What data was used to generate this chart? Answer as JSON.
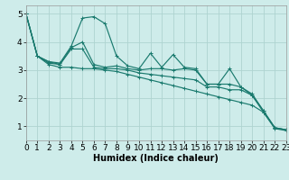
{
  "bg_color": "#ceecea",
  "grid_color": "#aed4d0",
  "line_color": "#1a7a6e",
  "xlabel": "Humidex (Indice chaleur)",
  "xlabel_fontsize": 7,
  "tick_fontsize": 6.5,
  "xlim": [
    0,
    23
  ],
  "ylim": [
    0.5,
    5.3
  ],
  "yticks": [
    1,
    2,
    3,
    4,
    5
  ],
  "xticks": [
    0,
    1,
    2,
    3,
    4,
    5,
    6,
    7,
    8,
    9,
    10,
    11,
    12,
    13,
    14,
    15,
    16,
    17,
    18,
    19,
    20,
    21,
    22,
    23
  ],
  "lines": [
    [
      5.0,
      3.5,
      3.3,
      3.25,
      3.85,
      4.85,
      4.9,
      4.65,
      3.5,
      3.15,
      3.05,
      3.6,
      3.1,
      3.55,
      3.1,
      3.05,
      2.5,
      2.5,
      3.05,
      2.4,
      2.15,
      1.55,
      0.95,
      0.88
    ],
    [
      5.0,
      3.5,
      3.3,
      3.2,
      3.8,
      4.0,
      3.2,
      3.1,
      3.15,
      3.05,
      3.0,
      3.05,
      3.05,
      3.0,
      3.05,
      3.0,
      2.5,
      2.5,
      2.5,
      2.4,
      2.1,
      1.55,
      0.95,
      0.88
    ],
    [
      5.0,
      3.5,
      3.25,
      3.2,
      3.75,
      3.75,
      3.1,
      3.05,
      3.05,
      3.0,
      2.9,
      2.85,
      2.8,
      2.75,
      2.7,
      2.65,
      2.4,
      2.4,
      2.3,
      2.3,
      2.1,
      1.5,
      0.95,
      0.87
    ],
    [
      5.0,
      3.5,
      3.2,
      3.1,
      3.1,
      3.05,
      3.05,
      3.0,
      2.95,
      2.85,
      2.75,
      2.65,
      2.55,
      2.45,
      2.35,
      2.25,
      2.15,
      2.05,
      1.95,
      1.85,
      1.75,
      1.5,
      0.92,
      0.85
    ]
  ]
}
